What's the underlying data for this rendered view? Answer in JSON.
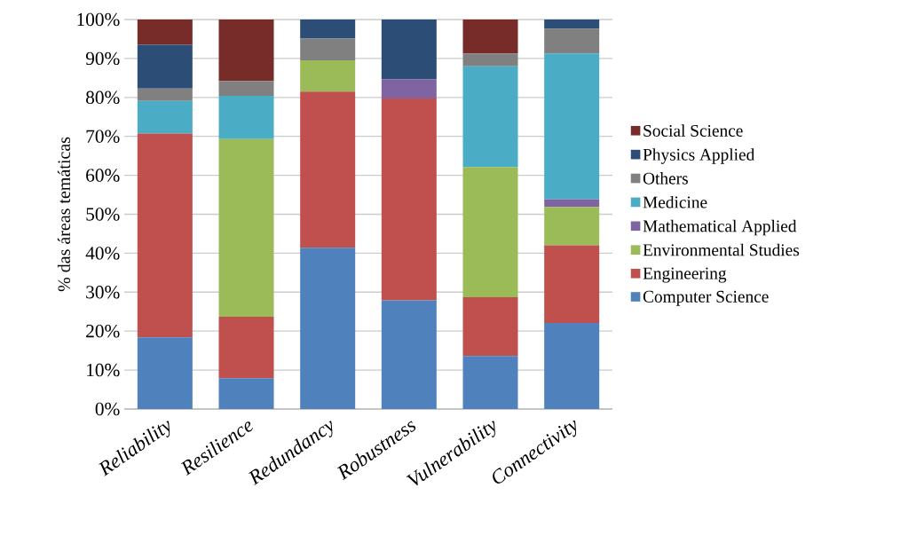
{
  "chart_data": {
    "type": "bar",
    "stacked": true,
    "ylabel": "% das áreas temáticas",
    "categories": [
      "Reliability",
      "Resilience",
      "Redundancy",
      "Robustness",
      "Vulnerability",
      "Connectivity"
    ],
    "series": [
      {
        "name": "Computer Science",
        "color": "#4f81bd",
        "values": [
          18.4,
          7.9,
          41.4,
          27.9,
          13.6,
          22.1
        ]
      },
      {
        "name": "Engineering",
        "color": "#c0504d",
        "values": [
          52.3,
          15.8,
          40.1,
          51.8,
          15.1,
          19.9
        ]
      },
      {
        "name": "Environmental Studies",
        "color": "#9bbb59",
        "values": [
          0,
          45.6,
          8.0,
          0,
          33.4,
          9.9
        ]
      },
      {
        "name": "Mathematical Applied",
        "color": "#8064a2",
        "values": [
          0,
          0,
          0,
          4.9,
          0,
          1.9
        ]
      },
      {
        "name": "Medicine",
        "color": "#4bacc6",
        "values": [
          8.4,
          11.1,
          0,
          0,
          25.9,
          37.5
        ]
      },
      {
        "name": "Others",
        "color": "#808080",
        "values": [
          3.2,
          3.8,
          5.6,
          0,
          3.3,
          6.3
        ]
      },
      {
        "name": "Physics Applied",
        "color": "#2c4d75",
        "values": [
          11.2,
          0,
          4.9,
          15.4,
          0,
          2.4
        ]
      },
      {
        "name": "Social Science",
        "color": "#772c2a",
        "values": [
          6.5,
          15.8,
          0,
          0,
          8.7,
          0
        ]
      }
    ],
    "ylim": [
      0,
      100
    ],
    "yticks": [
      {
        "value": 0,
        "label": "0%"
      },
      {
        "value": 10,
        "label": "10%"
      },
      {
        "value": 20,
        "label": "20%"
      },
      {
        "value": 30,
        "label": "30%"
      },
      {
        "value": 40,
        "label": "40%"
      },
      {
        "value": 50,
        "label": "50%"
      },
      {
        "value": 60,
        "label": "60%"
      },
      {
        "value": 70,
        "label": "70%"
      },
      {
        "value": 80,
        "label": "80%"
      },
      {
        "value": 90,
        "label": "90%"
      },
      {
        "value": 100,
        "label": "100%"
      }
    ],
    "grid": "y",
    "legend": "right"
  }
}
